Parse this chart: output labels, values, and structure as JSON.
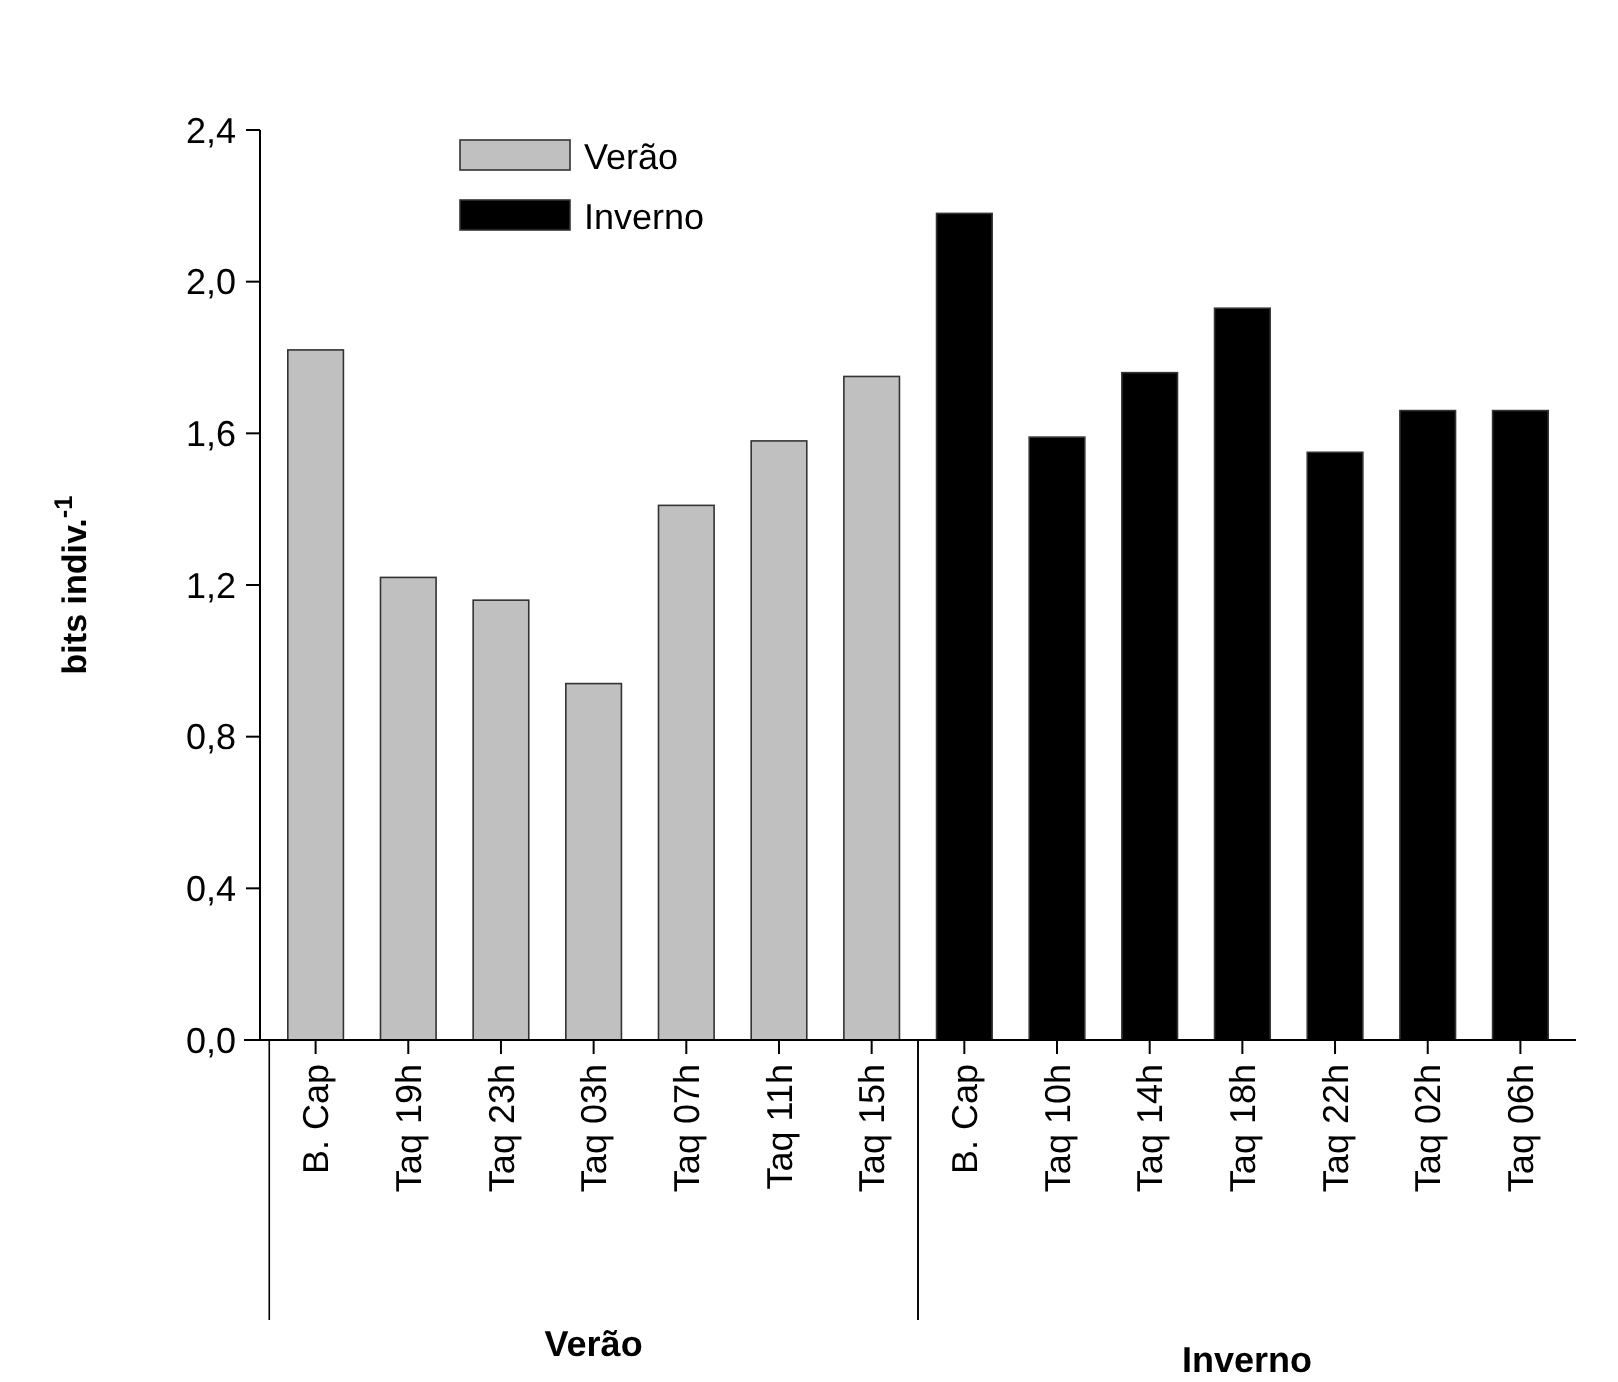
{
  "chart_data": {
    "type": "bar",
    "ylabel": "bits indiv.$^{-1}$",
    "categories": [
      "B. Cap",
      "Taq 19h",
      "Taq 23h",
      "Taq 03h",
      "Taq 07h",
      "Taq 11h",
      "Taq 15h",
      "B. Cap",
      "Taq 10h",
      "Taq 14h",
      "Taq 18h",
      "Taq 22h",
      "Taq 02h",
      "Taq 06h"
    ],
    "series": [
      {
        "name": "Verão",
        "color": "#c0c0c0",
        "values": [
          1.82,
          1.22,
          1.16,
          0.94,
          1.41,
          1.58,
          1.75,
          null,
          null,
          null,
          null,
          null,
          null,
          null
        ]
      },
      {
        "name": "Inverno",
        "color": "#000000",
        "values": [
          null,
          null,
          null,
          null,
          null,
          null,
          null,
          2.18,
          1.59,
          1.76,
          1.93,
          1.55,
          1.66,
          1.66
        ]
      }
    ],
    "annotations": [
      "Verão",
      "Inverno"
    ],
    "ylim": [
      0,
      2.4
    ],
    "yticks": [
      {
        "value": 0,
        "label": "0,0"
      },
      {
        "value": 0.4,
        "label": "0,4"
      },
      {
        "value": 0.8,
        "label": "0,8"
      },
      {
        "value": 1.2,
        "label": "1,2"
      },
      {
        "value": 1.6,
        "label": "1,6"
      },
      {
        "value": 2.0,
        "label": "2,0"
      },
      {
        "value": 2.4,
        "label": "2,4"
      }
    ],
    "legend": "top left"
  }
}
